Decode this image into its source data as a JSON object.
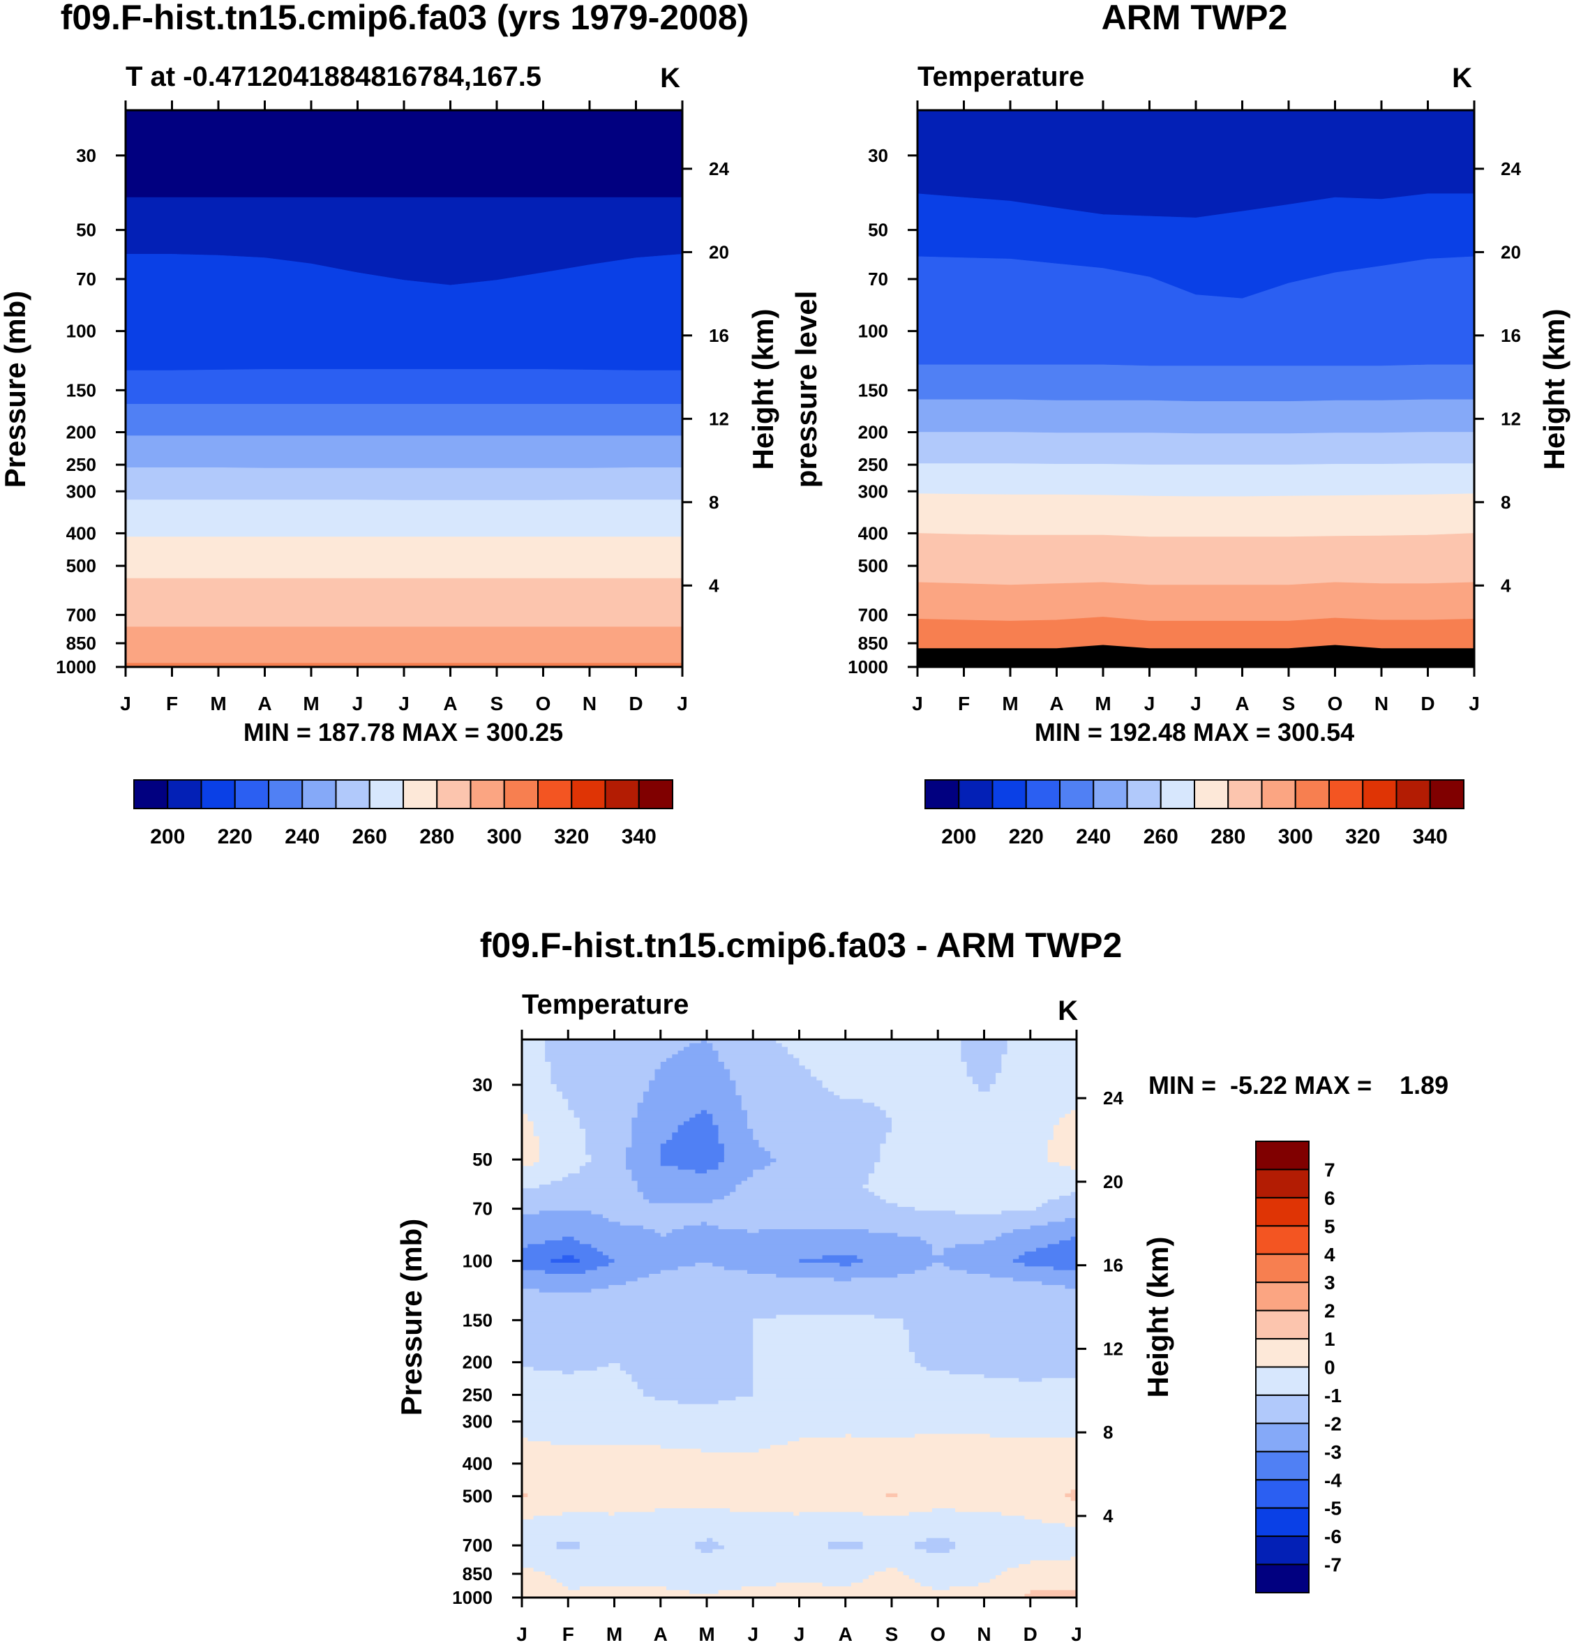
{
  "months": [
    "J",
    "F",
    "M",
    "A",
    "M",
    "J",
    "J",
    "A",
    "S",
    "O",
    "N",
    "D",
    "J"
  ],
  "chart_data": [
    {
      "type": "heatmap",
      "id": "model",
      "title": "f09.F-hist.tn15.cmip6.fa03 (yrs 1979-2008)",
      "subtitle_left": "T at -0.4712041884816784,167.5",
      "units": "K",
      "ylabel": "Pressure (mb)",
      "ylabel_right": "Height (km)",
      "pressure_ticks": [
        30,
        50,
        70,
        100,
        150,
        200,
        250,
        300,
        400,
        500,
        700,
        850,
        1000
      ],
      "height_ticks": [
        24,
        20,
        16,
        12,
        8,
        4
      ],
      "ylim": [
        1000,
        22
      ],
      "stats": "MIN = 187.78 MAX = 300.25",
      "colorbar_labels": [
        200,
        220,
        240,
        260,
        280,
        300,
        320,
        340
      ],
      "colorbar_colors": [
        "#010080",
        "#0320b6",
        "#0a40e6",
        "#2b5ff2",
        "#5080f4",
        "#85a9f8",
        "#b1c9fb",
        "#d7e7fd",
        "#fde8d8",
        "#fcc5ae",
        "#fba582",
        "#f77f50",
        "#f35522",
        "#df3405",
        "#b31c03",
        "#800000"
      ],
      "band_levels": [
        190,
        200,
        210,
        220,
        230,
        240,
        250,
        260,
        270,
        280,
        290,
        300
      ],
      "boundaries": [
        [
          40,
          40,
          40,
          40,
          40,
          40,
          40,
          40,
          40,
          40,
          40,
          40,
          40
        ],
        [
          59,
          59,
          59.5,
          60.5,
          63,
          67,
          70.5,
          73,
          70.5,
          67,
          63.5,
          60.5,
          59
        ],
        [
          131,
          131,
          130.5,
          130,
          130,
          130,
          130,
          130,
          130,
          130,
          130.5,
          131,
          131
        ],
        [
          165,
          165,
          165,
          165,
          165,
          165,
          165,
          165,
          165,
          165,
          165,
          165,
          165
        ],
        [
          205,
          205,
          205,
          205,
          205,
          205,
          205,
          205,
          205,
          205,
          205,
          205,
          205
        ],
        [
          255,
          255,
          255,
          256,
          256,
          256,
          256,
          256,
          256,
          256,
          256,
          255,
          255
        ],
        [
          318,
          318,
          318,
          318,
          318,
          318,
          319,
          319,
          319,
          319,
          318,
          318,
          318
        ],
        [
          410,
          410,
          410,
          410,
          410,
          410,
          410,
          410,
          410,
          410,
          410,
          410,
          410
        ],
        [
          545,
          545,
          545,
          545,
          545,
          545,
          545,
          545,
          545,
          545,
          545,
          545,
          545
        ],
        [
          760,
          760,
          760,
          760,
          760,
          760,
          760,
          760,
          760,
          760,
          760,
          760,
          760
        ],
        [
          975,
          975,
          975,
          975,
          975,
          975,
          975,
          975,
          975,
          975,
          975,
          975,
          975
        ]
      ]
    },
    {
      "type": "heatmap",
      "id": "obs",
      "title": "ARM TWP2",
      "subtitle_left": "Temperature",
      "units": "K",
      "ylabel": "pressure level",
      "ylabel_right": "Height (km)",
      "pressure_ticks": [
        30,
        50,
        70,
        100,
        150,
        200,
        250,
        300,
        400,
        500,
        700,
        850,
        1000
      ],
      "height_ticks": [
        24,
        20,
        16,
        12,
        8,
        4
      ],
      "ylim": [
        1000,
        22
      ],
      "stats": "MIN = 192.48 MAX = 300.54",
      "colorbar_labels": [
        200,
        220,
        240,
        260,
        280,
        300,
        320,
        340
      ],
      "colorbar_colors": [
        "#010080",
        "#0320b6",
        "#0a40e6",
        "#2b5ff2",
        "#5080f4",
        "#85a9f8",
        "#b1c9fb",
        "#d7e7fd",
        "#fde8d8",
        "#fcc5ae",
        "#fba582",
        "#f77f50",
        "#f35522",
        "#df3405",
        "#b31c03",
        "#800000"
      ],
      "band_levels": [
        200,
        210,
        220,
        230,
        240,
        250,
        260,
        270,
        280,
        290,
        300
      ],
      "boundaries": [
        [
          39,
          40,
          41,
          43,
          45,
          45.5,
          46,
          44,
          42,
          40,
          40.5,
          39,
          39
        ],
        [
          60,
          60.5,
          61,
          63,
          65,
          69,
          78,
          80,
          72,
          67,
          64,
          61,
          60
        ],
        [
          126,
          126,
          126,
          126,
          126,
          127,
          127,
          127,
          127,
          127,
          127,
          126,
          126
        ],
        [
          160,
          160,
          160,
          161,
          161,
          161,
          162,
          162,
          162,
          161,
          161,
          160,
          160
        ],
        [
          200,
          200,
          200,
          201,
          201,
          201,
          202,
          202,
          202,
          201,
          201,
          200,
          200
        ],
        [
          248,
          248,
          248,
          249,
          249,
          250,
          250,
          250,
          250,
          249,
          249,
          248,
          248
        ],
        [
          305,
          306,
          307,
          307,
          308,
          310,
          311,
          311,
          310,
          309,
          308,
          307,
          305
        ],
        [
          400,
          403,
          405,
          405,
          405,
          410,
          410,
          410,
          410,
          408,
          407,
          405,
          400
        ],
        [
          560,
          565,
          570,
          565,
          560,
          570,
          570,
          570,
          570,
          560,
          565,
          565,
          560
        ],
        [
          720,
          725,
          730,
          725,
          710,
          730,
          730,
          730,
          730,
          715,
          725,
          725,
          720
        ],
        [
          880,
          880,
          880,
          880,
          860,
          880,
          880,
          880,
          880,
          860,
          880,
          880,
          880
        ]
      ]
    },
    {
      "type": "heatmap",
      "id": "diff",
      "title": "f09.F-hist.tn15.cmip6.fa03 - ARM TWP2",
      "subtitle_left": "Temperature",
      "units": "K",
      "ylabel": "Pressure (mb)",
      "ylabel_right": "Height (km)",
      "pressure_ticks": [
        30,
        50,
        70,
        100,
        150,
        200,
        250,
        300,
        400,
        500,
        700,
        850,
        1000
      ],
      "height_ticks": [
        24,
        20,
        16,
        12,
        8,
        4
      ],
      "ylim": [
        1000,
        22
      ],
      "stats": "MIN =  -5.22 MAX =    1.89",
      "colorbar_labels": [
        7,
        6,
        5,
        4,
        3,
        2,
        1,
        0,
        -1,
        -2,
        -3,
        -4,
        -5,
        -6,
        -7
      ],
      "colorbar_colors": [
        "#800000",
        "#b31c03",
        "#df3405",
        "#f35522",
        "#f77f50",
        "#fba582",
        "#fcc5ae",
        "#fde8d8",
        "#d7e7fd",
        "#b1c9fb",
        "#85a9f8",
        "#5080f4",
        "#2b5ff2",
        "#0a40e6",
        "#0320b6",
        "#010080"
      ],
      "pressure_levels": [
        22,
        30,
        40,
        50,
        60,
        70,
        85,
        100,
        115,
        130,
        150,
        200,
        250,
        300,
        400,
        500,
        600,
        700,
        850,
        1000
      ],
      "values": [
        [
          -0.5,
          -1.5,
          -1.2,
          -1.8,
          -2,
          -1.2,
          -0.8,
          -0.5,
          -0.7,
          -0.6,
          -1.5,
          -0.5,
          -0.3
        ],
        [
          -0.6,
          -1.2,
          -1.3,
          -2.2,
          -2.6,
          -1.6,
          -1.2,
          -0.8,
          -0.9,
          -0.6,
          -1.1,
          -0.6,
          -0.4
        ],
        [
          0.3,
          -0.8,
          -1.5,
          -2.8,
          -3.3,
          -1.9,
          -1.5,
          -1.4,
          -1.0,
          -0.5,
          -0.6,
          -0.3,
          0.3
        ],
        [
          0.4,
          -0.5,
          -1.6,
          -3.1,
          -3.6,
          -2.2,
          -1.8,
          -1.5,
          -0.8,
          -0.4,
          -0.5,
          -0.2,
          0.4
        ],
        [
          -0.8,
          -1.3,
          -1.6,
          -2.4,
          -2.4,
          -1.8,
          -1.5,
          -1.2,
          -0.7,
          -0.4,
          -0.6,
          -0.5,
          -0.8
        ],
        [
          -1.8,
          -2.0,
          -1.8,
          -1.9,
          -1.9,
          -1.6,
          -1.5,
          -1.4,
          -1.1,
          -0.9,
          -0.8,
          -0.9,
          -1.6
        ],
        [
          -2.6,
          -3.0,
          -2.2,
          -2.0,
          -2.1,
          -2.1,
          -2.2,
          -2.3,
          -2.1,
          -1.9,
          -1.8,
          -2.6,
          -3.0
        ],
        [
          -3.4,
          -4.3,
          -3.0,
          -2.2,
          -2.0,
          -2.4,
          -3.0,
          -3.3,
          -2.6,
          -2.0,
          -2.6,
          -3.3,
          -3.8
        ],
        [
          -2.2,
          -2.4,
          -2.1,
          -1.8,
          -1.7,
          -1.7,
          -1.8,
          -1.9,
          -1.8,
          -1.7,
          -1.7,
          -2.0,
          -2.2
        ],
        [
          -1.7,
          -1.8,
          -1.7,
          -1.6,
          -1.6,
          -1.5,
          -1.5,
          -1.6,
          -1.7,
          -1.5,
          -1.4,
          -1.6,
          -1.7
        ],
        [
          -1.7,
          -1.6,
          -1.6,
          -1.5,
          -1.3,
          -1.0,
          -0.8,
          -0.8,
          -0.9,
          -1.3,
          -1.4,
          -1.5,
          -1.6
        ],
        [
          -1.1,
          -1.2,
          -1.0,
          -1.2,
          -1.3,
          -1.0,
          -0.7,
          -0.6,
          -0.8,
          -1.2,
          -1.3,
          -1.4,
          -1.3
        ],
        [
          -0.5,
          -0.6,
          -0.8,
          -1.1,
          -1.2,
          -1.0,
          -0.8,
          -0.7,
          -0.6,
          -0.5,
          -0.6,
          -0.7,
          -0.6
        ],
        [
          -0.2,
          -0.3,
          -0.4,
          -0.6,
          -0.7,
          -0.5,
          -0.3,
          -0.2,
          -0.2,
          -0.1,
          -0.2,
          -0.2,
          -0.2
        ],
        [
          0.3,
          0.2,
          0.3,
          0.4,
          0.3,
          0.2,
          0.4,
          0.4,
          0.3,
          0.3,
          0.4,
          0.3,
          0.3
        ],
        [
          1.1,
          0.5,
          0.4,
          0.4,
          0.4,
          0.5,
          0.4,
          0.4,
          1.1,
          0.5,
          0.4,
          0.5,
          1.2
        ],
        [
          -0.2,
          -0.3,
          -0.2,
          -0.4,
          -0.5,
          -0.3,
          -0.2,
          -0.3,
          -0.4,
          -0.5,
          -0.3,
          -0.1,
          0.1
        ],
        [
          -0.6,
          -1.2,
          -0.7,
          -0.6,
          -1.2,
          -0.7,
          -0.8,
          -1.2,
          -0.8,
          -1.3,
          -0.7,
          -0.6,
          -0.4
        ],
        [
          0.2,
          -0.2,
          -0.3,
          -0.4,
          -0.6,
          -0.3,
          -0.2,
          -0.3,
          0.2,
          -0.4,
          -0.2,
          0.4,
          0.5
        ],
        [
          0.4,
          0.1,
          0.3,
          0.3,
          0.1,
          0.3,
          0.3,
          0.3,
          0.3,
          0.2,
          0.3,
          1.2,
          1.3
        ]
      ]
    }
  ]
}
